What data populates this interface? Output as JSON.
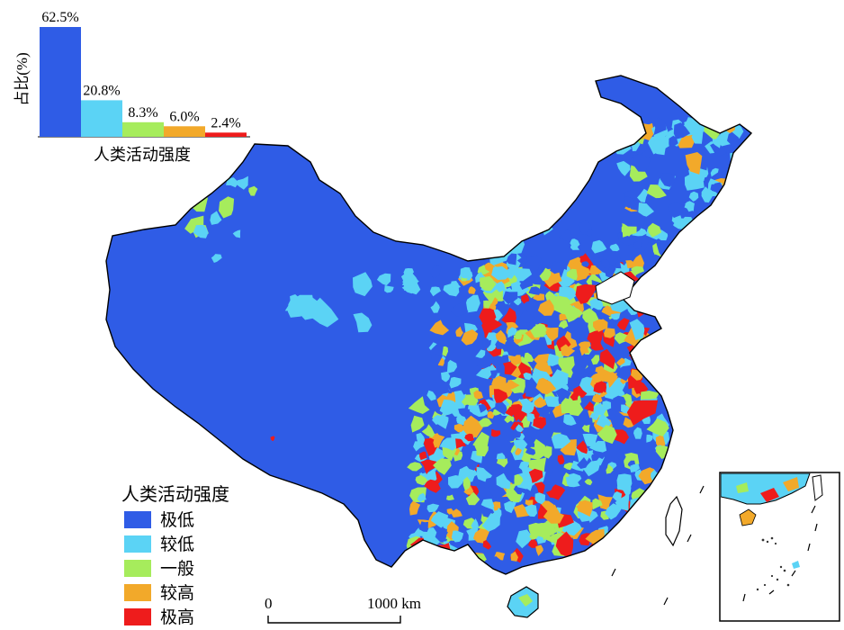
{
  "colors": {
    "very_low": "#2f5ce6",
    "low": "#5bd3f5",
    "medium": "#a6ec5c",
    "high": "#f2a92a",
    "very_high": "#ee1c1c",
    "outline": "#000000"
  },
  "bar_chart": {
    "ylabel": "占比(%)",
    "xlabel": "人类活动强度",
    "chart_data": {
      "type": "bar",
      "categories": [
        "极低",
        "较低",
        "一般",
        "较高",
        "极高"
      ],
      "values": [
        62.5,
        20.8,
        8.3,
        6.0,
        2.4
      ],
      "value_labels": [
        "62.5%",
        "20.8%",
        "8.3%",
        "6.0%",
        "2.4%"
      ],
      "xlabel": "人类活动强度",
      "ylabel": "占比(%)",
      "ylim": [
        0,
        62.5
      ]
    }
  },
  "legend": {
    "title": "人类活动强度",
    "items": [
      {
        "label": "极低",
        "color_key": "very_low"
      },
      {
        "label": "较低",
        "color_key": "low"
      },
      {
        "label": "一般",
        "color_key": "medium"
      },
      {
        "label": "较高",
        "color_key": "high"
      },
      {
        "label": "极高",
        "color_key": "very_high"
      }
    ]
  },
  "scale_bar": {
    "start_label": "0",
    "end_label": "1000 km"
  }
}
